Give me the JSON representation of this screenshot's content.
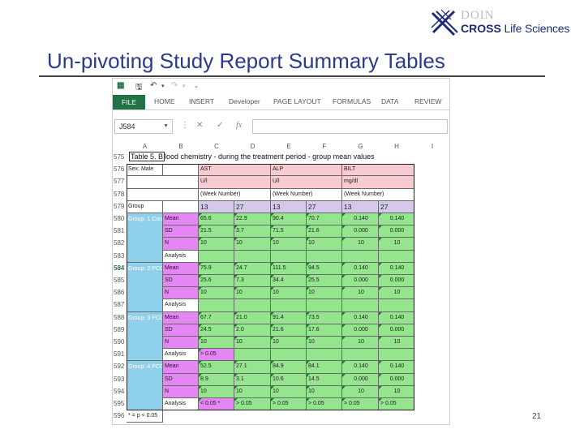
{
  "logo": {
    "top_small": "DOIN",
    "main_bold": "CROSS",
    "main_rest": " Life Sciences"
  },
  "slide": {
    "title": "Un-pivoting Study Report Summary Tables",
    "page_number": "21"
  },
  "excel": {
    "ribbon_tabs": [
      "FILE",
      "HOME",
      "INSERT",
      "Developer",
      "PAGE LAYOUT",
      "FORMULAS",
      "DATA",
      "REVIEW"
    ],
    "name_box": "J584",
    "fx_label": "fx",
    "columns": [
      "A",
      "B",
      "C",
      "D",
      "E",
      "F",
      "G",
      "H",
      "I"
    ],
    "rows": [
      "575",
      "576",
      "577",
      "578",
      "579",
      "580",
      "581",
      "582",
      "583",
      "584",
      "585",
      "586",
      "587",
      "588",
      "589",
      "590",
      "591",
      "592",
      "593",
      "594",
      "595",
      "596"
    ],
    "selected_row": "584",
    "table_title": "Table 5. Blood chemistry - during the treatment period - group mean values",
    "table_title_boxed": "Table 5. B",
    "sex_label": "Sex: Male",
    "params": [
      {
        "name": "AST",
        "unit": "U/l",
        "week_label": "(Week Number)"
      },
      {
        "name": "ALP",
        "unit": "U/l",
        "week_label": "(Week Number)"
      },
      {
        "name": "BILT",
        "unit": "mg/dl",
        "week_label": "(Week Number)"
      }
    ],
    "group_header": "Group",
    "weeks": [
      "13",
      "27",
      "13",
      "27",
      "13",
      "27"
    ],
    "groups": [
      {
        "label": "Group: 1 Cont",
        "rows": [
          {
            "stat": "Mean",
            "values": [
              "65.6",
              "22.9",
              "90.4",
              "70.7",
              "0.140",
              "0.140"
            ]
          },
          {
            "stat": "SD",
            "values": [
              "21.5",
              "3.7",
              "71.5",
              "21.6",
              "0.000",
              "0.000"
            ]
          },
          {
            "stat": "N",
            "values": [
              "10",
              "10",
              "10",
              "10",
              "10",
              "10"
            ]
          },
          {
            "stat": "Analysis",
            "values": [
              "",
              "",
              "",
              "",
              "",
              ""
            ]
          }
        ]
      },
      {
        "label": "Group: 2 PCD",
        "rows": [
          {
            "stat": "Mean",
            "values": [
              "75.9",
              "24.7",
              "111.5",
              "94.5",
              "0.140",
              "0.140"
            ]
          },
          {
            "stat": "SD",
            "values": [
              "25.6",
              "7.3",
              "34.4",
              "25.5",
              "0.000",
              "0.000"
            ]
          },
          {
            "stat": "N",
            "values": [
              "10",
              "10",
              "10",
              "10",
              "10",
              "10"
            ]
          },
          {
            "stat": "Analysis",
            "values": [
              "",
              "",
              "",
              "",
              "",
              ""
            ]
          }
        ]
      },
      {
        "label": "Group: 3 PCD",
        "rows": [
          {
            "stat": "Mean",
            "values": [
              "67.7",
              "21.0",
              "91.4",
              "73.5",
              "0.140",
              "0.140"
            ]
          },
          {
            "stat": "SD",
            "values": [
              "24.5",
              "2.0",
              "21.6",
              "17.6",
              "0.000",
              "0.000"
            ]
          },
          {
            "stat": "N",
            "values": [
              "10",
              "10",
              "10",
              "10",
              "10",
              "10"
            ]
          },
          {
            "stat": "Analysis",
            "values": [
              "> 0.05",
              "",
              "",
              "",
              "",
              ""
            ]
          }
        ]
      },
      {
        "label": "Group: 4 PCD",
        "rows": [
          {
            "stat": "Mean",
            "values": [
              "52.5",
              "27.1",
              "84.9",
              "84.1",
              "0.140",
              "0.140"
            ]
          },
          {
            "stat": "SD",
            "values": [
              "8.9",
              "3.1",
              "10.6",
              "14.5",
              "0.000",
              "0.000"
            ]
          },
          {
            "stat": "N",
            "values": [
              "10",
              "10",
              "10",
              "10",
              "10",
              "10"
            ]
          },
          {
            "stat": "Analysis",
            "values": [
              "< 0.05 *",
              "> 0.05",
              "> 0.05",
              "> 0.05",
              "> 0.05",
              "> 0.05"
            ]
          }
        ]
      }
    ],
    "footnote": "* = p < 0.05"
  },
  "colors": {
    "title": "#2a3a8c",
    "excel_green": "#217346",
    "header_pink": "#f8cbd2",
    "stat_violet": "#e486f4",
    "value_green": "#95e58e",
    "group_blue": "#8fd0ec",
    "week_lavender": "#d4c9ea"
  }
}
